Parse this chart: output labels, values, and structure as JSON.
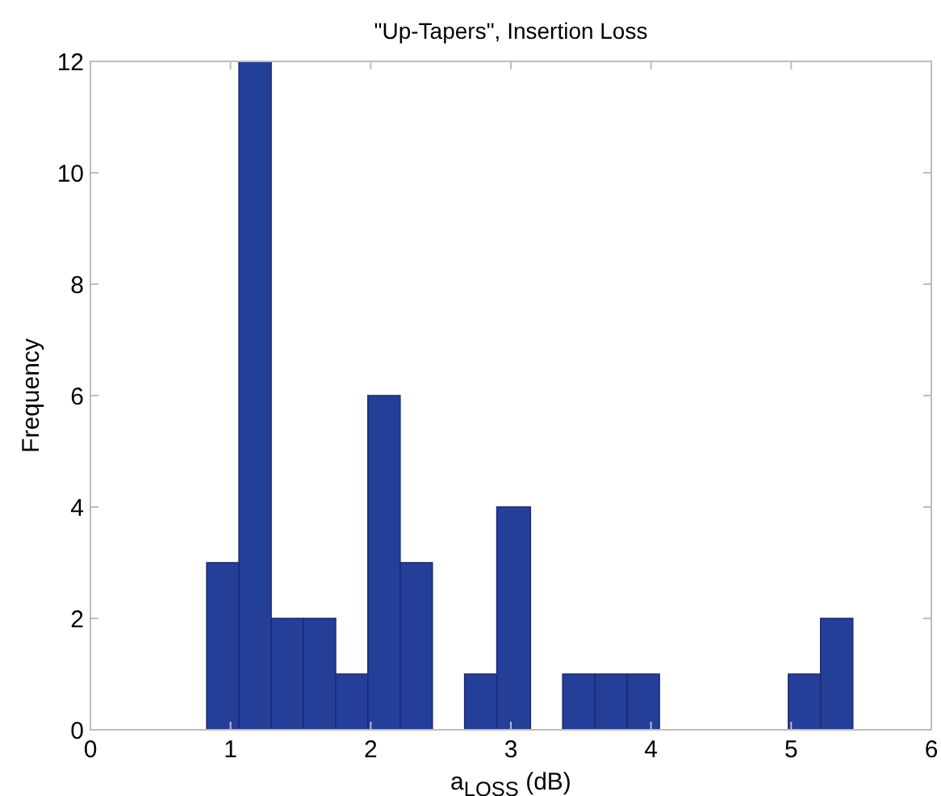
{
  "chart_data": {
    "type": "histogram",
    "title": "\"Up-Tapers\", Insertion Loss",
    "xlabel": "a$_{LOSS}$ (dB)",
    "ylabel": "Frequency",
    "bins": [
      0.83,
      1.06,
      1.29,
      1.52,
      1.75,
      1.98,
      2.21,
      2.44,
      2.67,
      2.9,
      3.14,
      3.37,
      3.6,
      3.83,
      4.06,
      4.98,
      5.21,
      5.44
    ],
    "values": [
      3,
      12,
      2,
      2,
      1,
      6,
      3,
      0,
      1,
      4,
      0,
      1,
      1,
      1,
      0,
      1,
      2
    ],
    "color": "#243f98",
    "xlim": [
      0,
      6
    ],
    "xticks": [
      0,
      1,
      2,
      3,
      4,
      5,
      6
    ],
    "ylim": [
      0,
      12
    ],
    "yticks": [
      0,
      2,
      4,
      6,
      8,
      10,
      12
    ],
    "grid": false
  }
}
